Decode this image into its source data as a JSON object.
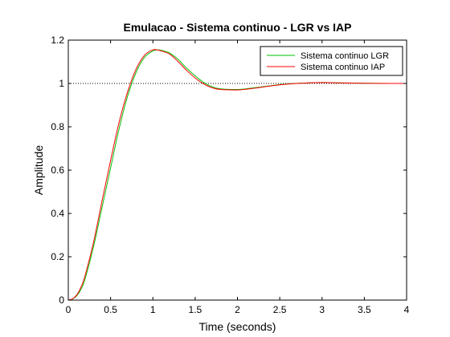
{
  "chart_data": {
    "type": "line",
    "title": "Emulacao - Sistema continuo - LGR vs IAP",
    "xlabel": "Time (seconds)",
    "ylabel": "Amplitude",
    "xlim": [
      0,
      4
    ],
    "ylim": [
      0,
      1.2
    ],
    "xticks": [
      "0",
      "0.5",
      "1",
      "1.5",
      "2",
      "2.5",
      "3",
      "3.5",
      "4"
    ],
    "yticks": [
      "0",
      "0.2",
      "0.4",
      "0.6",
      "0.8",
      "1",
      "1.2"
    ],
    "reference_line": {
      "y": 1,
      "style": "dotted",
      "color": "#000000"
    },
    "legend_position": "top-right",
    "grid": false,
    "series": [
      {
        "name": "Sistema continuo LGR",
        "color": "#00c000",
        "x": [
          0,
          0.05,
          0.1,
          0.15,
          0.2,
          0.3,
          0.4,
          0.5,
          0.6,
          0.7,
          0.8,
          0.9,
          1.0,
          1.05,
          1.1,
          1.2,
          1.3,
          1.4,
          1.5,
          1.6,
          1.7,
          1.8,
          2.0,
          2.1,
          2.2,
          2.4,
          2.6,
          2.8,
          3.0,
          3.2,
          3.5,
          3.8,
          4.0
        ],
        "y": [
          0,
          0.005,
          0.02,
          0.05,
          0.1,
          0.25,
          0.43,
          0.61,
          0.79,
          0.94,
          1.05,
          1.12,
          1.15,
          1.155,
          1.153,
          1.14,
          1.11,
          1.07,
          1.035,
          1.005,
          0.985,
          0.975,
          0.972,
          0.975,
          0.98,
          0.99,
          0.998,
          1.002,
          1.004,
          1.003,
          1.001,
          1.0,
          1.0
        ]
      },
      {
        "name": "Sistema continuo IAP",
        "color": "#ff0000",
        "x": [
          0,
          0.05,
          0.1,
          0.15,
          0.2,
          0.3,
          0.4,
          0.5,
          0.6,
          0.7,
          0.8,
          0.9,
          1.0,
          1.05,
          1.1,
          1.2,
          1.3,
          1.4,
          1.5,
          1.6,
          1.7,
          1.8,
          2.0,
          2.1,
          2.2,
          2.4,
          2.6,
          2.8,
          3.0,
          3.2,
          3.5,
          3.8,
          4.0
        ],
        "y": [
          0,
          0.006,
          0.024,
          0.06,
          0.115,
          0.27,
          0.46,
          0.645,
          0.82,
          0.96,
          1.065,
          1.13,
          1.155,
          1.155,
          1.15,
          1.135,
          1.1,
          1.06,
          1.025,
          0.998,
          0.98,
          0.972,
          0.97,
          0.973,
          0.978,
          0.989,
          0.997,
          1.002,
          1.004,
          1.003,
          1.001,
          1.0,
          1.0
        ]
      }
    ]
  }
}
